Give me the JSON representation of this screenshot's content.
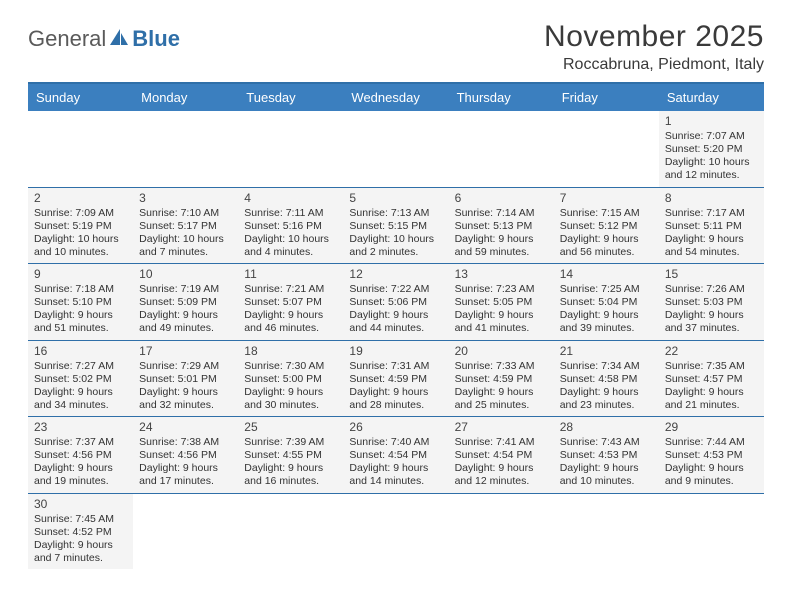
{
  "logo": {
    "text1": "General",
    "text2": "Blue"
  },
  "title": "November 2025",
  "location": "Roccabruna, Piedmont, Italy",
  "colors": {
    "header_bg": "#3b7fbf",
    "header_text": "#ffffff",
    "border": "#2f6fa8",
    "cell_bg": "#f4f4f4",
    "page_bg": "#ffffff",
    "text": "#333333",
    "title_color": "#3a3a3a"
  },
  "day_headers": [
    "Sunday",
    "Monday",
    "Tuesday",
    "Wednesday",
    "Thursday",
    "Friday",
    "Saturday"
  ],
  "weeks": [
    [
      null,
      null,
      null,
      null,
      null,
      null,
      {
        "n": "1",
        "sr": "7:07 AM",
        "ss": "5:20 PM",
        "dl": "10 hours and 12 minutes."
      }
    ],
    [
      {
        "n": "2",
        "sr": "7:09 AM",
        "ss": "5:19 PM",
        "dl": "10 hours and 10 minutes."
      },
      {
        "n": "3",
        "sr": "7:10 AM",
        "ss": "5:17 PM",
        "dl": "10 hours and 7 minutes."
      },
      {
        "n": "4",
        "sr": "7:11 AM",
        "ss": "5:16 PM",
        "dl": "10 hours and 4 minutes."
      },
      {
        "n": "5",
        "sr": "7:13 AM",
        "ss": "5:15 PM",
        "dl": "10 hours and 2 minutes."
      },
      {
        "n": "6",
        "sr": "7:14 AM",
        "ss": "5:13 PM",
        "dl": "9 hours and 59 minutes."
      },
      {
        "n": "7",
        "sr": "7:15 AM",
        "ss": "5:12 PM",
        "dl": "9 hours and 56 minutes."
      },
      {
        "n": "8",
        "sr": "7:17 AM",
        "ss": "5:11 PM",
        "dl": "9 hours and 54 minutes."
      }
    ],
    [
      {
        "n": "9",
        "sr": "7:18 AM",
        "ss": "5:10 PM",
        "dl": "9 hours and 51 minutes."
      },
      {
        "n": "10",
        "sr": "7:19 AM",
        "ss": "5:09 PM",
        "dl": "9 hours and 49 minutes."
      },
      {
        "n": "11",
        "sr": "7:21 AM",
        "ss": "5:07 PM",
        "dl": "9 hours and 46 minutes."
      },
      {
        "n": "12",
        "sr": "7:22 AM",
        "ss": "5:06 PM",
        "dl": "9 hours and 44 minutes."
      },
      {
        "n": "13",
        "sr": "7:23 AM",
        "ss": "5:05 PM",
        "dl": "9 hours and 41 minutes."
      },
      {
        "n": "14",
        "sr": "7:25 AM",
        "ss": "5:04 PM",
        "dl": "9 hours and 39 minutes."
      },
      {
        "n": "15",
        "sr": "7:26 AM",
        "ss": "5:03 PM",
        "dl": "9 hours and 37 minutes."
      }
    ],
    [
      {
        "n": "16",
        "sr": "7:27 AM",
        "ss": "5:02 PM",
        "dl": "9 hours and 34 minutes."
      },
      {
        "n": "17",
        "sr": "7:29 AM",
        "ss": "5:01 PM",
        "dl": "9 hours and 32 minutes."
      },
      {
        "n": "18",
        "sr": "7:30 AM",
        "ss": "5:00 PM",
        "dl": "9 hours and 30 minutes."
      },
      {
        "n": "19",
        "sr": "7:31 AM",
        "ss": "4:59 PM",
        "dl": "9 hours and 28 minutes."
      },
      {
        "n": "20",
        "sr": "7:33 AM",
        "ss": "4:59 PM",
        "dl": "9 hours and 25 minutes."
      },
      {
        "n": "21",
        "sr": "7:34 AM",
        "ss": "4:58 PM",
        "dl": "9 hours and 23 minutes."
      },
      {
        "n": "22",
        "sr": "7:35 AM",
        "ss": "4:57 PM",
        "dl": "9 hours and 21 minutes."
      }
    ],
    [
      {
        "n": "23",
        "sr": "7:37 AM",
        "ss": "4:56 PM",
        "dl": "9 hours and 19 minutes."
      },
      {
        "n": "24",
        "sr": "7:38 AM",
        "ss": "4:56 PM",
        "dl": "9 hours and 17 minutes."
      },
      {
        "n": "25",
        "sr": "7:39 AM",
        "ss": "4:55 PM",
        "dl": "9 hours and 16 minutes."
      },
      {
        "n": "26",
        "sr": "7:40 AM",
        "ss": "4:54 PM",
        "dl": "9 hours and 14 minutes."
      },
      {
        "n": "27",
        "sr": "7:41 AM",
        "ss": "4:54 PM",
        "dl": "9 hours and 12 minutes."
      },
      {
        "n": "28",
        "sr": "7:43 AM",
        "ss": "4:53 PM",
        "dl": "9 hours and 10 minutes."
      },
      {
        "n": "29",
        "sr": "7:44 AM",
        "ss": "4:53 PM",
        "dl": "9 hours and 9 minutes."
      }
    ],
    [
      {
        "n": "30",
        "sr": "7:45 AM",
        "ss": "4:52 PM",
        "dl": "9 hours and 7 minutes."
      },
      null,
      null,
      null,
      null,
      null,
      null
    ]
  ],
  "labels": {
    "sunrise": "Sunrise:",
    "sunset": "Sunset:",
    "daylight": "Daylight:"
  }
}
